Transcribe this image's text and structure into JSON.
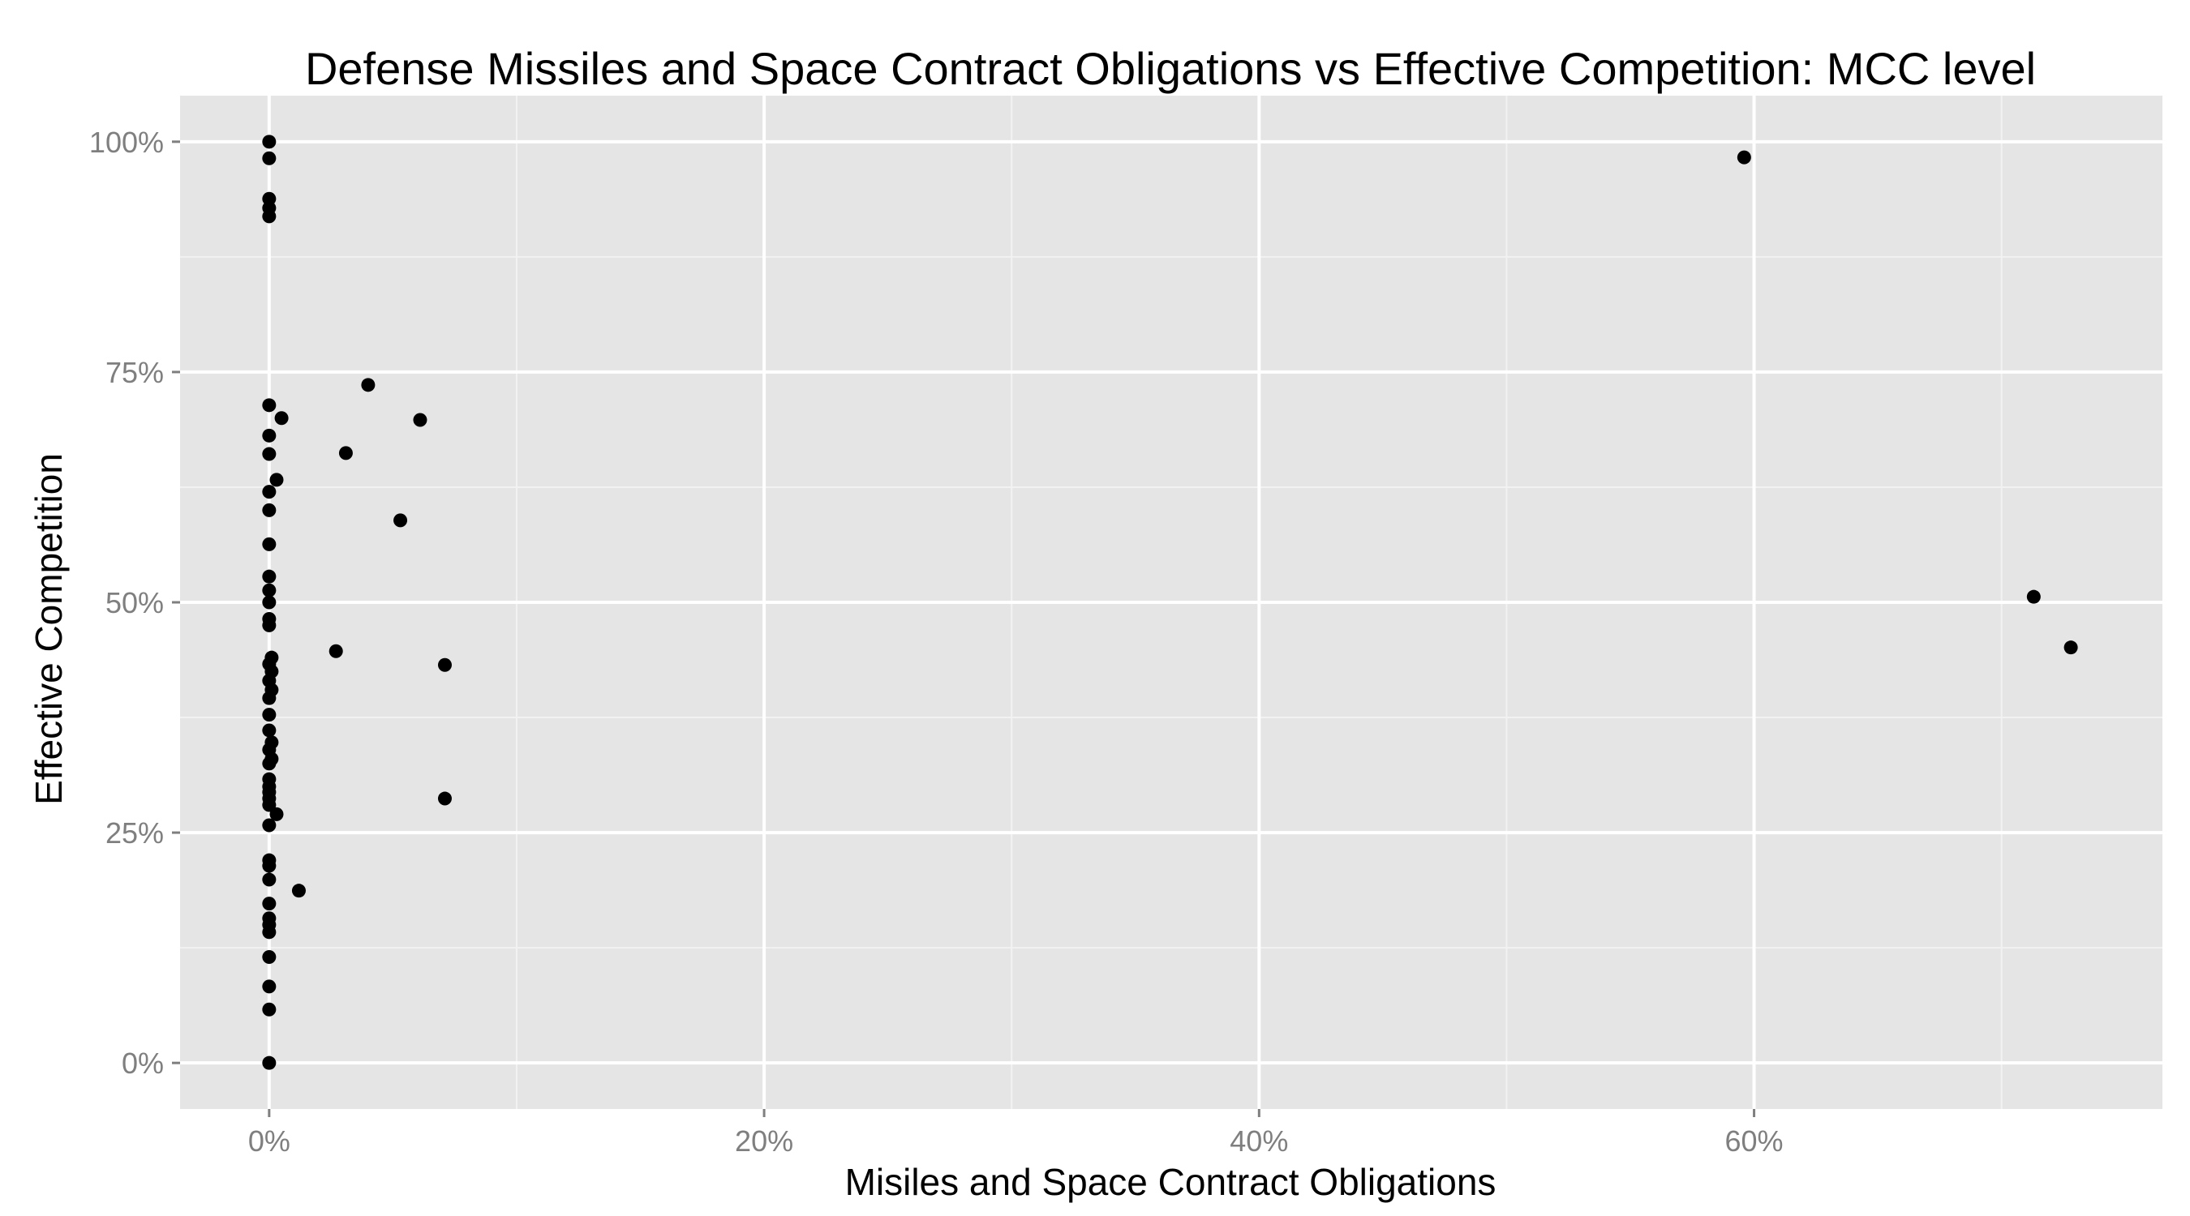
{
  "chart_data": {
    "type": "scatter",
    "title": "Defense Missiles and Space Contract Obligations vs Effective Competition: MCC level",
    "xlabel": "Misiles and Space Contract Obligations",
    "ylabel": "Effective Competition",
    "xlim": [
      -3.6,
      76.5
    ],
    "ylim": [
      -5.0,
      105.0
    ],
    "x_ticks": [
      0,
      20,
      40,
      60
    ],
    "x_tick_labels": [
      "0%",
      "20%",
      "40%",
      "60%"
    ],
    "y_ticks": [
      0,
      25,
      50,
      75,
      100
    ],
    "y_tick_labels": [
      "0%",
      "25%",
      "50%",
      "75%",
      "100%"
    ],
    "grid": true,
    "panel_color": "#e5e5e5",
    "grid_color": "#ffffff",
    "point_color": "#000000",
    "points": [
      {
        "x": 0.0,
        "y": 100.0
      },
      {
        "x": 0.0,
        "y": 98.2
      },
      {
        "x": 0.0,
        "y": 93.8
      },
      {
        "x": 0.0,
        "y": 92.8
      },
      {
        "x": 0.0,
        "y": 91.9
      },
      {
        "x": 0.0,
        "y": 71.4
      },
      {
        "x": 0.5,
        "y": 70.0
      },
      {
        "x": 0.0,
        "y": 68.1
      },
      {
        "x": 0.0,
        "y": 66.1
      },
      {
        "x": 0.3,
        "y": 63.3
      },
      {
        "x": 0.0,
        "y": 62.0
      },
      {
        "x": 0.0,
        "y": 60.0
      },
      {
        "x": 0.0,
        "y": 56.3
      },
      {
        "x": 0.0,
        "y": 52.8
      },
      {
        "x": 0.0,
        "y": 51.3
      },
      {
        "x": 0.0,
        "y": 50.0
      },
      {
        "x": 0.0,
        "y": 48.2
      },
      {
        "x": 0.0,
        "y": 47.5
      },
      {
        "x": 0.1,
        "y": 44.0
      },
      {
        "x": 0.0,
        "y": 43.3
      },
      {
        "x": 0.1,
        "y": 42.5
      },
      {
        "x": 0.0,
        "y": 41.5
      },
      {
        "x": 0.1,
        "y": 40.5
      },
      {
        "x": 0.0,
        "y": 39.6
      },
      {
        "x": 0.0,
        "y": 37.8
      },
      {
        "x": 0.0,
        "y": 36.1
      },
      {
        "x": 0.1,
        "y": 34.8
      },
      {
        "x": 0.0,
        "y": 34.0
      },
      {
        "x": 0.1,
        "y": 33.0
      },
      {
        "x": 0.0,
        "y": 32.5
      },
      {
        "x": 0.0,
        "y": 30.8
      },
      {
        "x": 0.0,
        "y": 30.0
      },
      {
        "x": 0.0,
        "y": 29.4
      },
      {
        "x": 0.0,
        "y": 28.7
      },
      {
        "x": 0.0,
        "y": 28.0
      },
      {
        "x": 0.3,
        "y": 27.0
      },
      {
        "x": 0.0,
        "y": 25.8
      },
      {
        "x": 0.0,
        "y": 22.0
      },
      {
        "x": 0.0,
        "y": 21.4
      },
      {
        "x": 0.0,
        "y": 19.9
      },
      {
        "x": 0.0,
        "y": 17.3
      },
      {
        "x": 0.0,
        "y": 15.7
      },
      {
        "x": 0.0,
        "y": 15.0
      },
      {
        "x": 0.0,
        "y": 14.2
      },
      {
        "x": 0.0,
        "y": 11.5
      },
      {
        "x": 0.0,
        "y": 8.3
      },
      {
        "x": 0.0,
        "y": 5.8
      },
      {
        "x": 0.0,
        "y": 0.0
      },
      {
        "x": 1.2,
        "y": 18.7
      },
      {
        "x": 2.7,
        "y": 44.7
      },
      {
        "x": 3.1,
        "y": 66.2
      },
      {
        "x": 4.0,
        "y": 73.6
      },
      {
        "x": 5.3,
        "y": 58.9
      },
      {
        "x": 6.1,
        "y": 69.8
      },
      {
        "x": 7.1,
        "y": 43.2
      },
      {
        "x": 7.1,
        "y": 28.7
      },
      {
        "x": 59.6,
        "y": 98.3
      },
      {
        "x": 71.3,
        "y": 50.6
      },
      {
        "x": 72.8,
        "y": 45.1
      }
    ]
  }
}
